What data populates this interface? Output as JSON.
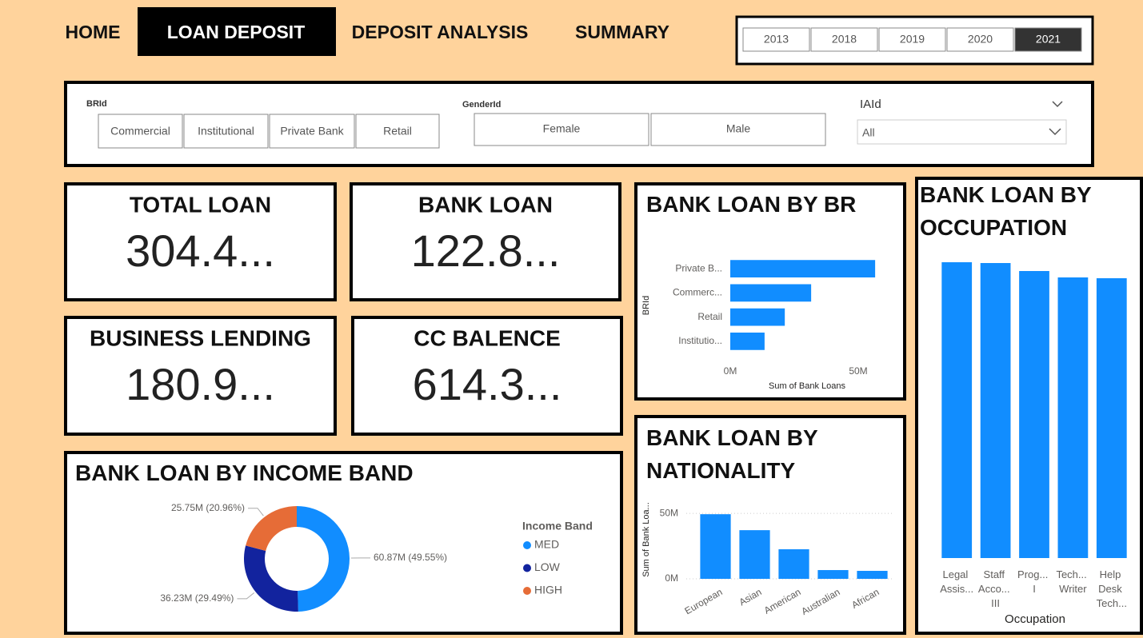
{
  "nav": {
    "tabs": [
      "HOME",
      "LOAN DEPOSIT",
      "DEPOSIT ANALYSIS",
      "SUMMARY"
    ],
    "active_tab": 1
  },
  "years": {
    "options": [
      "2013",
      "2018",
      "2019",
      "2020",
      "2021"
    ],
    "selected": 4
  },
  "filters": {
    "brid": {
      "label": "BRId",
      "options": [
        "Commercial",
        "Institutional",
        "Private Bank",
        "Retail"
      ]
    },
    "gender": {
      "label": "GenderId",
      "options": [
        "Female",
        "Male"
      ]
    },
    "iaid": {
      "label": "IAId",
      "value": "All"
    }
  },
  "cards": [
    {
      "title": "TOTAL LOAN",
      "value": "304.4..."
    },
    {
      "title": "BANK LOAN",
      "value": "122.8..."
    },
    {
      "title": "BUSINESS LENDING",
      "value": "180.9..."
    },
    {
      "title": "CC BALENCE",
      "value": "614.3..."
    }
  ],
  "chart_data": [
    {
      "type": "bar",
      "orientation": "horizontal",
      "title": "BANK LOAN BY BR",
      "categories": [
        "Private B...",
        "Commerc...",
        "Retail",
        "Institutio..."
      ],
      "values": [
        56.6,
        31.6,
        21.3,
        13.4
      ],
      "color": "#118DFF",
      "xlim": [
        0,
        60
      ],
      "xticks": [
        {
          "value": 0,
          "label": "0M"
        },
        {
          "value": 50,
          "label": "50M"
        }
      ],
      "xlabel": "Sum of Bank Loans",
      "ylabel": "BRId"
    },
    {
      "type": "bar",
      "orientation": "vertical",
      "title": "BANK LOAN BY NATIONALITY",
      "categories": [
        "European",
        "Asian",
        "American",
        "Australian",
        "African"
      ],
      "values": [
        49.4,
        37.2,
        22.6,
        6.7,
        6.1
      ],
      "color": "#118DFF",
      "ylim": [
        0,
        55
      ],
      "yticks": [
        {
          "value": 0,
          "label": "0M"
        },
        {
          "value": 50,
          "label": "50M"
        }
      ],
      "ylabel": "Sum of Bank Loa...",
      "grid": true,
      "rotate_labels": true
    },
    {
      "type": "bar",
      "orientation": "vertical",
      "title": "BANK LOAN BY OCCUPATION",
      "categories": [
        "Legal Assis...",
        "Staff Acco... III",
        "Prog... I",
        "Tech... Writer",
        "Help Desk Tech..."
      ],
      "values": [
        3.7,
        3.69,
        3.59,
        3.51,
        3.5
      ],
      "color": "#118DFF",
      "ylim": [
        0,
        4
      ],
      "xlabel": "Occupation"
    },
    {
      "type": "pie",
      "donut": true,
      "title": "BANK LOAN BY INCOME BAND",
      "categories": [
        "MED",
        "LOW",
        "HIGH"
      ],
      "values": [
        60.87,
        36.23,
        25.75
      ],
      "value_labels": [
        "60.87M (49.55%)",
        "36.23M (29.49%)",
        "25.75M (20.96%)"
      ],
      "colors": [
        "#118DFF",
        "#12239E",
        "#E66C37"
      ],
      "legend_title": "Income Band"
    }
  ]
}
